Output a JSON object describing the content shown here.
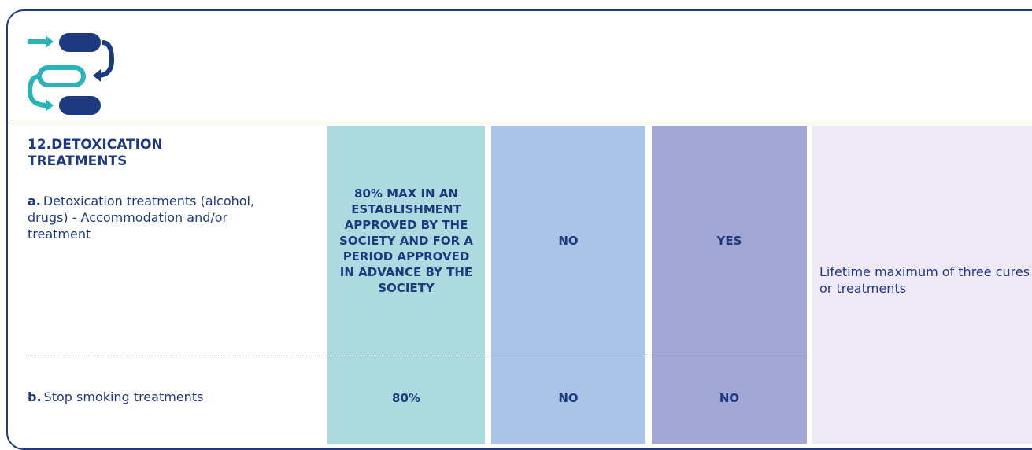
{
  "section": {
    "title": "12.DETOXICATION TREATMENTS"
  },
  "rows": [
    {
      "prefix": "a.",
      "label": "Detoxication treatments (alcohol, drugs) - Accommodation and/or treatment",
      "cells": [
        "80% MAX IN AN ESTABLISHMENT APPROVED BY THE SOCIETY AND FOR A PERIOD APPROVED IN ADVANCE BY THE SOCIETY",
        "NO",
        "YES"
      ]
    },
    {
      "prefix": "b.",
      "label": "Stop smoking treatments",
      "cells": [
        "80%",
        "NO",
        "NO"
      ]
    }
  ],
  "note": "Lifetime maximum of three cures or treatments"
}
